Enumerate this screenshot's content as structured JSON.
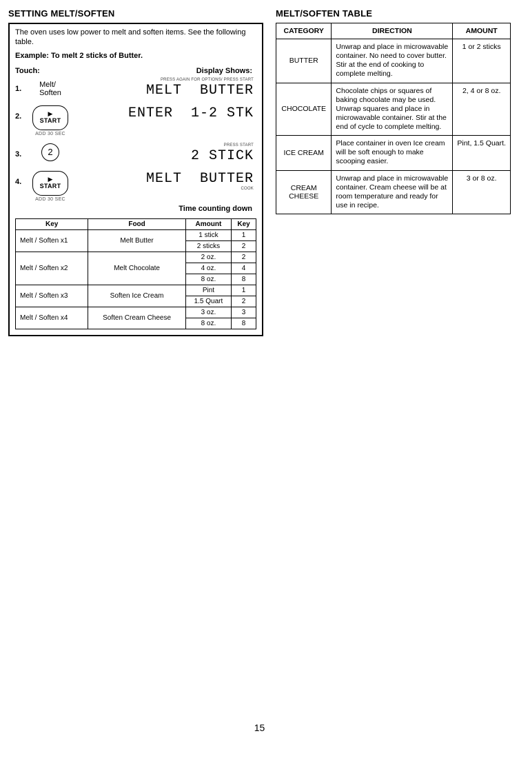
{
  "page_number": "15",
  "left": {
    "heading": "SETTING MELT/SOFTEN",
    "intro": "The oven uses low power to melt and soften items. See the following table.",
    "example": "Example: To melt 2 sticks of Butter.",
    "touch_label": "Touch:",
    "display_label": "Display Shows:",
    "steps": [
      {
        "num": "1.",
        "icon_type": "text",
        "icon_text": "Melt/\nSoften",
        "pretext": "PRESS AGAIN FOR OPTIONS/  PRESS START",
        "display": "MELT  BUTTER"
      },
      {
        "num": "2.",
        "icon_type": "start",
        "display": "ENTER  1-2 STK"
      },
      {
        "num": "3.",
        "icon_type": "circle",
        "icon_text": "2",
        "pretext": "PRESS START",
        "display": "2 STICK"
      },
      {
        "num": "4.",
        "icon_type": "start",
        "display": "MELT  BUTTER",
        "posttext": "COOK"
      }
    ],
    "start_label": "START",
    "add30": "ADD 30 SEC",
    "countdown": "Time counting down",
    "keytable": {
      "headers": [
        "Key",
        "Food",
        "Amount",
        "Key"
      ],
      "groups": [
        {
          "key": "Melt / Soften x1",
          "food": "Melt Butter",
          "rows": [
            {
              "amount": "1 stick",
              "k": "1"
            },
            {
              "amount": "2 sticks",
              "k": "2"
            }
          ]
        },
        {
          "key": "Melt / Soften x2",
          "food": "Melt Chocolate",
          "rows": [
            {
              "amount": "2 oz.",
              "k": "2"
            },
            {
              "amount": "4 oz.",
              "k": "4"
            },
            {
              "amount": "8 oz.",
              "k": "8"
            }
          ]
        },
        {
          "key": "Melt / Soften x3",
          "food": "Soften Ice Cream",
          "rows": [
            {
              "amount": "Pint",
              "k": "1"
            },
            {
              "amount": "1.5 Quart",
              "k": "2"
            }
          ]
        },
        {
          "key": "Melt / Soften x4",
          "food": "Soften Cream Cheese",
          "rows": [
            {
              "amount": "3 oz.",
              "k": "3"
            },
            {
              "amount": "8 oz.",
              "k": "8"
            }
          ]
        }
      ]
    }
  },
  "right": {
    "heading": "MELT/SOFTEN TABLE",
    "headers": [
      "CATEGORY",
      "DIRECTION",
      "AMOUNT"
    ],
    "rows": [
      {
        "category": "BUTTER",
        "direction": "Unwrap and place in microwavable container. No need to cover butter. Stir at the end of cooking to complete melting.",
        "amount": "1 or 2 sticks"
      },
      {
        "category": "CHOCOLATE",
        "direction": "Chocolate chips or squares of baking chocolate may be used. Unwrap squares and place in microwavable container. Stir at the end of cycle to complete melting.",
        "amount": "2, 4 or 8 oz."
      },
      {
        "category": "ICE CREAM",
        "direction": "Place container in oven Ice cream will be soft enough to make scooping easier.",
        "amount": "Pint, 1.5 Quart."
      },
      {
        "category": "CREAM CHEESE",
        "direction": "Unwrap and place in microwavable container. Cream cheese will be at room temperature and ready for use in recipe.",
        "amount": "3 or 8 oz."
      }
    ]
  },
  "colors": {
    "text": "#000000",
    "bg": "#ffffff",
    "border": "#000000"
  }
}
